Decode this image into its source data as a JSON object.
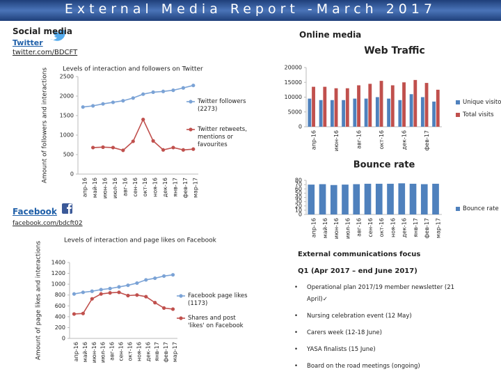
{
  "title": "External Media Report -March 2017",
  "social_media": {
    "heading": "Social media",
    "twitter": "Twitter",
    "twitter_url": "twitter.com/BDCFT",
    "facebook": "Facebook",
    "facebook_url": "facebook.com/bdcft02"
  },
  "online_media": {
    "heading": "Online media"
  },
  "communications": {
    "heading": "External communications focus",
    "period": "Q1 (Apr 2017 – end June 2017)",
    "items": [
      "Operational plan 2017/19 member newsletter (21 April)✓",
      "Nursing celebration event (12 May)",
      "Carers week (12-18 June)",
      "YASA finalists (15 June)",
      "Board on the road meetings (ongoing)"
    ]
  },
  "chart_data": [
    {
      "type": "line",
      "title": "Levels of interaction and followers on Twitter",
      "y_label": "Amount of followers and interactions",
      "categories": [
        "апр-16",
        "май-16",
        "июн-16",
        "июл-16",
        "авг-16",
        "сен-16",
        "окт-16",
        "ноя-16",
        "дек-16",
        "янв-17",
        "фев-17",
        "мар-17"
      ],
      "ylim": [
        0,
        2500
      ],
      "yticks": [
        0,
        500,
        1000,
        1500,
        2000,
        2500
      ],
      "grid": false,
      "series": [
        {
          "name": "Twitter followers (2273)",
          "color": "#7ba3d6",
          "values": [
            1720,
            1750,
            1800,
            1840,
            1880,
            1950,
            2050,
            2100,
            2120,
            2150,
            2210,
            2273
          ]
        },
        {
          "name": "Twitter retweets, mentions or favourites",
          "color": "#c0504d",
          "values": [
            null,
            680,
            690,
            680,
            610,
            840,
            1400,
            850,
            620,
            680,
            620,
            640
          ]
        }
      ]
    },
    {
      "type": "bar",
      "title": "Web Traffic",
      "categories": [
        "апр-16",
        null,
        "июн-16",
        null,
        "авг-16",
        null,
        "окт-16",
        null,
        "дек-16",
        null,
        "фев-17",
        null
      ],
      "ylim": [
        0,
        20000
      ],
      "yticks": [
        0,
        5000,
        10000,
        15000,
        20000
      ],
      "grid": false,
      "series": [
        {
          "name": "Unique visitors",
          "color": "#4f81bd",
          "values": [
            9500,
            9000,
            9000,
            9000,
            9500,
            9500,
            10000,
            9500,
            9000,
            11000,
            10000,
            8500
          ]
        },
        {
          "name": "Total visits",
          "color": "#c0504d",
          "values": [
            13500,
            13500,
            13000,
            13000,
            14000,
            14500,
            15500,
            14000,
            15000,
            15800,
            14800,
            12500
          ]
        }
      ]
    },
    {
      "type": "bar",
      "title": "Bounce rate",
      "categories": [
        "апр-16",
        "май-16",
        "июн-16",
        "июл-16",
        "авг-16",
        "сен-16",
        "окт-16",
        "ноя-16",
        "дек-16",
        "янв-17",
        "фев-17",
        "мар-17"
      ],
      "ylim": [
        0,
        80
      ],
      "yticks": [
        0,
        10,
        20,
        30,
        40,
        50,
        60,
        70,
        80
      ],
      "grid": false,
      "series": [
        {
          "name": "Bounce rate",
          "color": "#4f81bd",
          "values": [
            70,
            71,
            69,
            70,
            71,
            72,
            72,
            72,
            73,
            72,
            71,
            72
          ]
        }
      ]
    },
    {
      "type": "line",
      "title": "Levels of interaction and page likes on Facebook",
      "y_label": "Amount of page likes and interactions",
      "categories": [
        "апр-16",
        "май-16",
        "июн-16",
        "июл-16",
        "авг-16",
        "сен-16",
        "окт-16",
        "ноя-16",
        "дек-16",
        "янв-17",
        "фев-17",
        "мар-17"
      ],
      "ylim": [
        0,
        1400
      ],
      "yticks": [
        0,
        200,
        400,
        600,
        800,
        1000,
        1200,
        1400
      ],
      "grid": false,
      "series": [
        {
          "name": "Facebook page likes (1173)",
          "color": "#7ba3d6",
          "values": [
            820,
            850,
            870,
            900,
            920,
            950,
            980,
            1020,
            1080,
            1110,
            1150,
            1173
          ]
        },
        {
          "name": "Shares and post 'likes' on Facebook",
          "color": "#c0504d",
          "values": [
            450,
            460,
            730,
            820,
            840,
            850,
            790,
            800,
            770,
            660,
            560,
            540
          ]
        }
      ]
    }
  ]
}
